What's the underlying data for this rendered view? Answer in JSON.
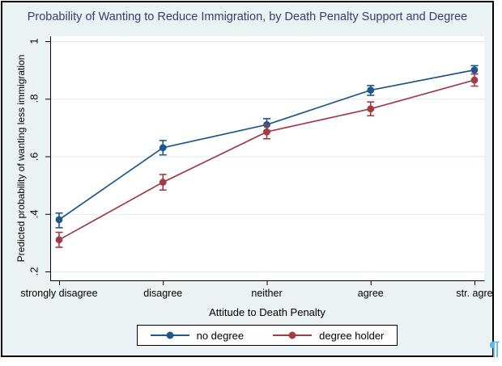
{
  "title": "Probability of Wanting to Reduce Immigration, by Death Penalty Support and Degree",
  "colors": {
    "frame_background": "#EAF2F3",
    "plot_background": "#FFFFFF",
    "title_text": "#363F6B",
    "gridline": "#DDEBED",
    "axis": "#000000",
    "series_no_degree": "#1F578C",
    "series_degree_holder": "#A23C46",
    "paragraph_mark": "#5BB8F0"
  },
  "paragraph_mark": {
    "glyph": "¶"
  },
  "chart_data": {
    "type": "line",
    "title": "Probability of Wanting to Reduce Immigration, by Death Penalty Support and Degree",
    "xlabel": "Attitude to Death Penalty",
    "ylabel": "Predicted probability of wanting less immigration",
    "categories": [
      "strongly disagree",
      "disagree",
      "neither",
      "agree",
      "str. agre"
    ],
    "ylim": [
      0.2,
      1.0
    ],
    "y_ticks": [
      {
        "label": ".2",
        "value": 0.2
      },
      {
        "label": ".4",
        "value": 0.4
      },
      {
        "label": ".6",
        "value": 0.6
      },
      {
        "label": ".8",
        "value": 0.8
      },
      {
        "label": "1",
        "value": 1.0
      }
    ],
    "grid": true,
    "legend_position": "bottom",
    "error_bars": true,
    "series": [
      {
        "name": "no degree",
        "color": "#1F578C",
        "values": [
          0.38,
          0.63,
          0.71,
          0.83,
          0.9
        ],
        "ci_low": [
          0.352,
          0.605,
          0.688,
          0.812,
          0.886
        ],
        "ci_high": [
          0.403,
          0.655,
          0.731,
          0.846,
          0.915
        ]
      },
      {
        "name": "degree holder",
        "color": "#A23C46",
        "values": [
          0.31,
          0.51,
          0.685,
          0.765,
          0.865
        ],
        "ci_low": [
          0.284,
          0.483,
          0.661,
          0.741,
          0.844
        ],
        "ci_high": [
          0.336,
          0.537,
          0.709,
          0.789,
          0.886
        ]
      }
    ]
  }
}
